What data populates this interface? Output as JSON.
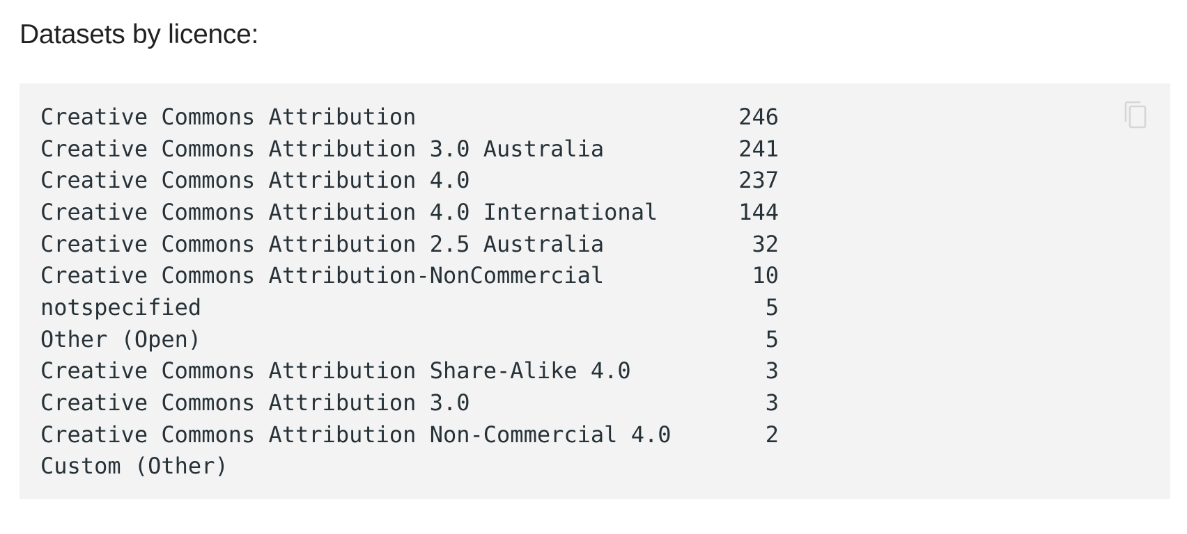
{
  "heading": "Datasets by licence:",
  "code_block": {
    "rows": [
      {
        "name": "Creative Commons Attribution",
        "count": "246"
      },
      {
        "name": "Creative Commons Attribution 3.0 Australia",
        "count": "241"
      },
      {
        "name": "Creative Commons Attribution 4.0",
        "count": "237"
      },
      {
        "name": "Creative Commons Attribution 4.0 International",
        "count": "144"
      },
      {
        "name": "Creative Commons Attribution 2.5 Australia",
        "count": "32"
      },
      {
        "name": "Creative Commons Attribution-NonCommercial",
        "count": "10"
      },
      {
        "name": "notspecified",
        "count": "5"
      },
      {
        "name": "Other (Open)",
        "count": "5"
      },
      {
        "name": "Creative Commons Attribution Share-Alike 4.0",
        "count": "3"
      },
      {
        "name": "Creative Commons Attribution 3.0",
        "count": "3"
      },
      {
        "name": "Creative Commons Attribution Non-Commercial 4.0",
        "count": "2"
      },
      {
        "name": "Custom (Other)",
        "count": ""
      }
    ],
    "copy_icon": "copy-icon"
  },
  "colors": {
    "code_background": "#f3f3f3",
    "code_text": "#263238",
    "heading_text": "#212121",
    "icon": "#d6d6d6"
  }
}
